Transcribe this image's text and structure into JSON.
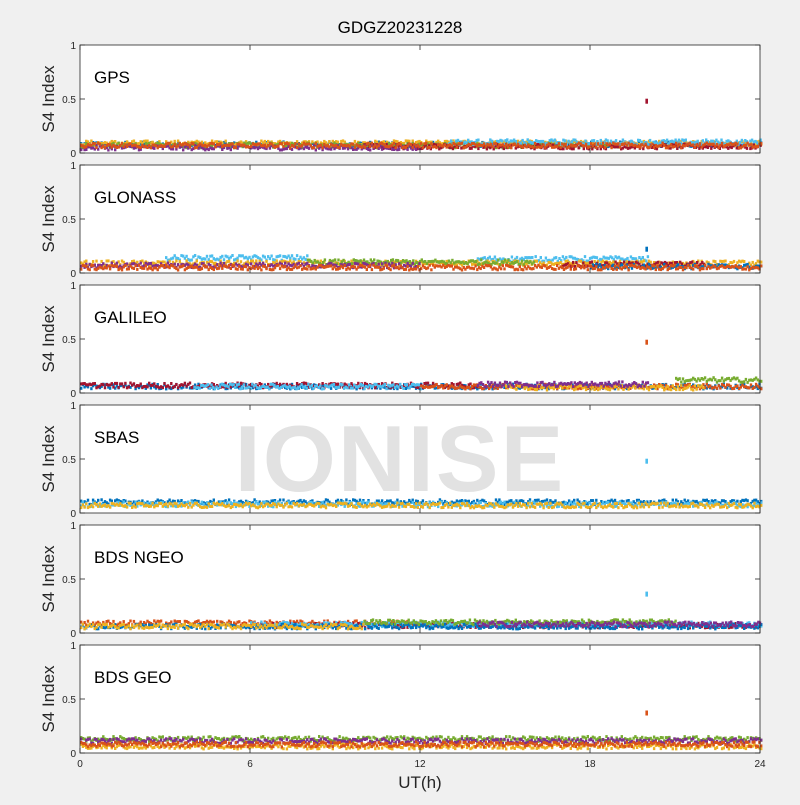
{
  "figure": {
    "title": "GDGZ20231228",
    "xlabel": "UT(h)",
    "watermark": "IONISE"
  },
  "chart_data": {
    "type": "scatter",
    "xlabel": "UT(h)",
    "ylabel": "S4 Index",
    "xlim": [
      0,
      24
    ],
    "ylim": [
      0,
      1
    ],
    "xticks": [
      0,
      6,
      12,
      18,
      24
    ],
    "yticks": [
      0,
      0.5,
      1
    ],
    "series_colors": [
      "#0072BD",
      "#D95319",
      "#EDB120",
      "#7E2F8E",
      "#77AC30",
      "#4DBEEE",
      "#A2142F"
    ],
    "panels": [
      {
        "label": "GPS",
        "bands": [
          {
            "color": "#0072BD",
            "x": [
              0,
              24
            ],
            "y": 0.08
          },
          {
            "color": "#EDB120",
            "x": [
              0,
              24
            ],
            "y": 0.09
          },
          {
            "color": "#77AC30",
            "x": [
              0,
              19
            ],
            "y": 0.07
          },
          {
            "color": "#A2142F",
            "x": [
              10,
              24
            ],
            "y": 0.06
          },
          {
            "color": "#7E2F8E",
            "x": [
              0,
              12
            ],
            "y": 0.05
          },
          {
            "color": "#4DBEEE",
            "x": [
              13,
              24
            ],
            "y": 0.1
          },
          {
            "color": "#D95319",
            "x": [
              0,
              24
            ],
            "y": 0.07
          }
        ],
        "spikes": [
          {
            "x": 20,
            "y": 0.48,
            "color": "#A2142F"
          }
        ]
      },
      {
        "label": "GLONASS",
        "bands": [
          {
            "color": "#4DBEEE",
            "x": [
              3,
              8
            ],
            "y": 0.14
          },
          {
            "color": "#4DBEEE",
            "x": [
              14,
              20
            ],
            "y": 0.13
          },
          {
            "color": "#EDB120",
            "x": [
              0,
              24
            ],
            "y": 0.09
          },
          {
            "color": "#77AC30",
            "x": [
              8,
              16
            ],
            "y": 0.1
          },
          {
            "color": "#7E2F8E",
            "x": [
              0,
              12
            ],
            "y": 0.07
          },
          {
            "color": "#A2142F",
            "x": [
              17,
              22
            ],
            "y": 0.08
          },
          {
            "color": "#0072BD",
            "x": [
              18,
              24
            ],
            "y": 0.06
          },
          {
            "color": "#D95319",
            "x": [
              0,
              24
            ],
            "y": 0.05
          }
        ],
        "spikes": [
          {
            "x": 20,
            "y": 0.22,
            "color": "#0072BD"
          }
        ]
      },
      {
        "label": "GALILEO",
        "bands": [
          {
            "color": "#0072BD",
            "x": [
              0,
              24
            ],
            "y": 0.06
          },
          {
            "color": "#A2142F",
            "x": [
              0,
              14
            ],
            "y": 0.07
          },
          {
            "color": "#D95319",
            "x": [
              12,
              24
            ],
            "y": 0.06
          },
          {
            "color": "#77AC30",
            "x": [
              21,
              24
            ],
            "y": 0.12
          },
          {
            "color": "#EDB120",
            "x": [
              15,
              22
            ],
            "y": 0.05
          },
          {
            "color": "#7E2F8E",
            "x": [
              14,
              20
            ],
            "y": 0.08
          },
          {
            "color": "#4DBEEE",
            "x": [
              4,
              12
            ],
            "y": 0.06
          }
        ],
        "spikes": [
          {
            "x": 20,
            "y": 0.47,
            "color": "#D95319"
          }
        ]
      },
      {
        "label": "SBAS",
        "bands": [
          {
            "color": "#0072BD",
            "x": [
              0,
              24
            ],
            "y": 0.1
          },
          {
            "color": "#4DBEEE",
            "x": [
              0,
              24
            ],
            "y": 0.08
          },
          {
            "color": "#EDB120",
            "x": [
              0,
              24
            ],
            "y": 0.07
          }
        ],
        "spikes": [
          {
            "x": 20,
            "y": 0.48,
            "color": "#4DBEEE"
          }
        ]
      },
      {
        "label": "BDS NGEO",
        "bands": [
          {
            "color": "#D95319",
            "x": [
              0,
              12
            ],
            "y": 0.09
          },
          {
            "color": "#A2142F",
            "x": [
              6,
              24
            ],
            "y": 0.07
          },
          {
            "color": "#4DBEEE",
            "x": [
              6,
              24
            ],
            "y": 0.08
          },
          {
            "color": "#0072BD",
            "x": [
              0,
              24
            ],
            "y": 0.06
          },
          {
            "color": "#77AC30",
            "x": [
              10,
              21
            ],
            "y": 0.1
          },
          {
            "color": "#7E2F8E",
            "x": [
              14,
              24
            ],
            "y": 0.08
          },
          {
            "color": "#EDB120",
            "x": [
              0,
              10
            ],
            "y": 0.06
          }
        ],
        "spikes": [
          {
            "x": 20,
            "y": 0.36,
            "color": "#4DBEEE"
          }
        ]
      },
      {
        "label": "BDS GEO",
        "bands": [
          {
            "color": "#77AC30",
            "x": [
              0,
              24
            ],
            "y": 0.13
          },
          {
            "color": "#7E2F8E",
            "x": [
              0,
              24
            ],
            "y": 0.11
          },
          {
            "color": "#EDB120",
            "x": [
              0,
              24
            ],
            "y": 0.06
          },
          {
            "color": "#D95319",
            "x": [
              0,
              24
            ],
            "y": 0.08
          }
        ],
        "spikes": [
          {
            "x": 20,
            "y": 0.37,
            "color": "#D95319"
          }
        ]
      }
    ]
  }
}
